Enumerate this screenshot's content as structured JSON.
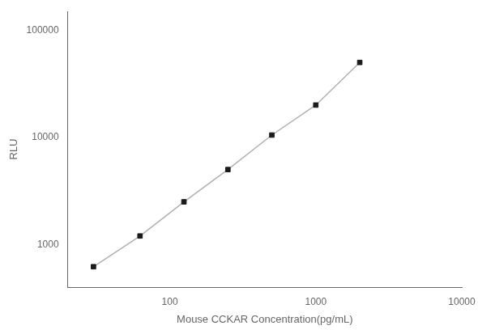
{
  "chart_data": {
    "type": "line",
    "xlabel": "Mouse CCKAR Concentration(pg/mL)",
    "ylabel": "RLU",
    "x": [
      30,
      62.5,
      125,
      250,
      500,
      1000,
      2000
    ],
    "series": [
      {
        "type": "line",
        "color": "#b0b0b0",
        "line_style": "solid",
        "values": [
          620,
          1200,
          2500,
          5000,
          10500,
          20000,
          50000
        ]
      },
      {
        "type": "scatter",
        "color": "#1a1a1a",
        "marker": "square",
        "values": [
          620,
          1200,
          2500,
          5000,
          10500,
          20000,
          50000
        ]
      }
    ],
    "log": true,
    "xlim": [
      20,
      10000
    ],
    "ylim": [
      400,
      150000
    ],
    "xticks": [
      100,
      1000,
      10000
    ],
    "yticks": [
      1000,
      10000,
      100000
    ],
    "grid": false,
    "background_color": "#ffffff"
  }
}
